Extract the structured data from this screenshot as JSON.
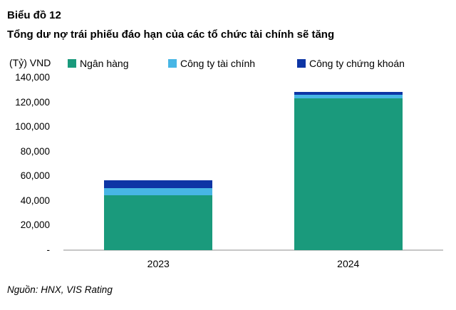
{
  "header": {
    "figure_label": "Biểu đồ 12",
    "title": "Tổng dư nợ trái phiếu đáo hạn của các tổ chức tài chính sẽ tăng"
  },
  "chart_data": {
    "type": "bar",
    "stacked": true,
    "unit_label": "(Tỷ) VND",
    "categories": [
      "2023",
      "2024"
    ],
    "series": [
      {
        "name": "Ngân hàng",
        "color": "#1A9A7C",
        "values": [
          44500,
          123000
        ]
      },
      {
        "name": "Công ty tài chính",
        "color": "#47B6E5",
        "values": [
          6000,
          3000
        ]
      },
      {
        "name": "Công ty chứng khoán",
        "color": "#0D35A5",
        "values": [
          6300,
          2500
        ]
      }
    ],
    "ylim": [
      0,
      140000
    ],
    "ytick_step": 20000,
    "ytick_labels": [
      "140,000",
      "120,000",
      "100,000",
      "80,000",
      "60,000",
      "40,000",
      "20,000",
      "-"
    ],
    "grid": false,
    "legend_position": "top",
    "axis_line_color": "#C6C6C6"
  },
  "footer": {
    "source": "Nguồn: HNX, VIS Rating"
  }
}
